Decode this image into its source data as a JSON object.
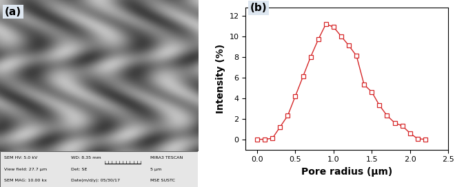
{
  "chart_data": {
    "type": "line",
    "panel_label": "(b)",
    "x_label": "Pore radius (μm)",
    "y_label": "Intensity (%)",
    "x": [
      0.0,
      0.1,
      0.2,
      0.3,
      0.4,
      0.5,
      0.6,
      0.7,
      0.8,
      0.9,
      1.0,
      1.1,
      1.2,
      1.3,
      1.4,
      1.5,
      1.6,
      1.7,
      1.8,
      1.9,
      2.0,
      2.1,
      2.2
    ],
    "series": [
      {
        "color": "#d62728",
        "marker": "s",
        "line_style": "solid",
        "values": [
          0.0,
          0.0,
          0.1,
          1.2,
          2.3,
          4.2,
          6.1,
          8.0,
          9.7,
          11.2,
          10.9,
          10.0,
          9.1,
          8.1,
          5.3,
          4.6,
          3.3,
          2.3,
          1.6,
          1.3,
          0.6,
          0.05,
          0.0
        ]
      }
    ],
    "xlim": [
      -0.15,
      2.5
    ],
    "xticks": [
      {
        "value": 0.0,
        "label": "0.0"
      },
      {
        "value": 0.5,
        "label": "0.5"
      },
      {
        "value": 1.0,
        "label": "1.0"
      },
      {
        "value": 1.5,
        "label": "1.5"
      },
      {
        "value": 2.0,
        "label": "2.0"
      },
      {
        "value": 2.5,
        "label": "2.5"
      }
    ],
    "ylim": [
      -1.0,
      12.8
    ],
    "yticks": [
      0,
      2,
      4,
      6,
      8,
      10,
      12
    ],
    "grid": false
  },
  "image_panel": {
    "panel_label": "(a)",
    "info_rows": [
      [
        "SEM HV: 5.0 kV",
        "WD: 8.35 mm",
        "MIRA3 TESCAN"
      ],
      [
        "View field: 27.7 μm",
        "Det: SE",
        "5 μm"
      ],
      [
        "SEM MAG: 10.00 kx",
        "Date(m/d/y): 05/30/17",
        "MSE SUSTC"
      ]
    ]
  }
}
